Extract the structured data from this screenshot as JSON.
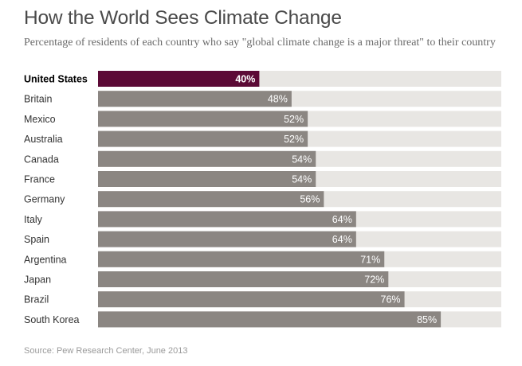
{
  "chart_data": {
    "type": "bar",
    "orientation": "horizontal",
    "title": "How the World Sees Climate Change",
    "subtitle": "Percentage of residents of each country who say \"global climate change is a major threat\" to their country",
    "categories": [
      "United States",
      "Britain",
      "Mexico",
      "Australia",
      "Canada",
      "France",
      "Germany",
      "Italy",
      "Spain",
      "Argentina",
      "Japan",
      "Brazil",
      "South Korea"
    ],
    "values": [
      40,
      48,
      52,
      52,
      54,
      54,
      56,
      64,
      64,
      71,
      72,
      76,
      85
    ],
    "value_labels": [
      "40%",
      "48%",
      "52%",
      "52%",
      "54%",
      "54%",
      "56%",
      "64%",
      "64%",
      "71%",
      "72%",
      "76%",
      "85%"
    ],
    "highlight_category": "United States",
    "xlim": [
      0,
      100
    ],
    "source": "Source: Pew Research Center, June 2013",
    "colors": {
      "highlight": "#5c0a36",
      "bar": "#8b8682",
      "track": "#e8e6e3"
    }
  }
}
